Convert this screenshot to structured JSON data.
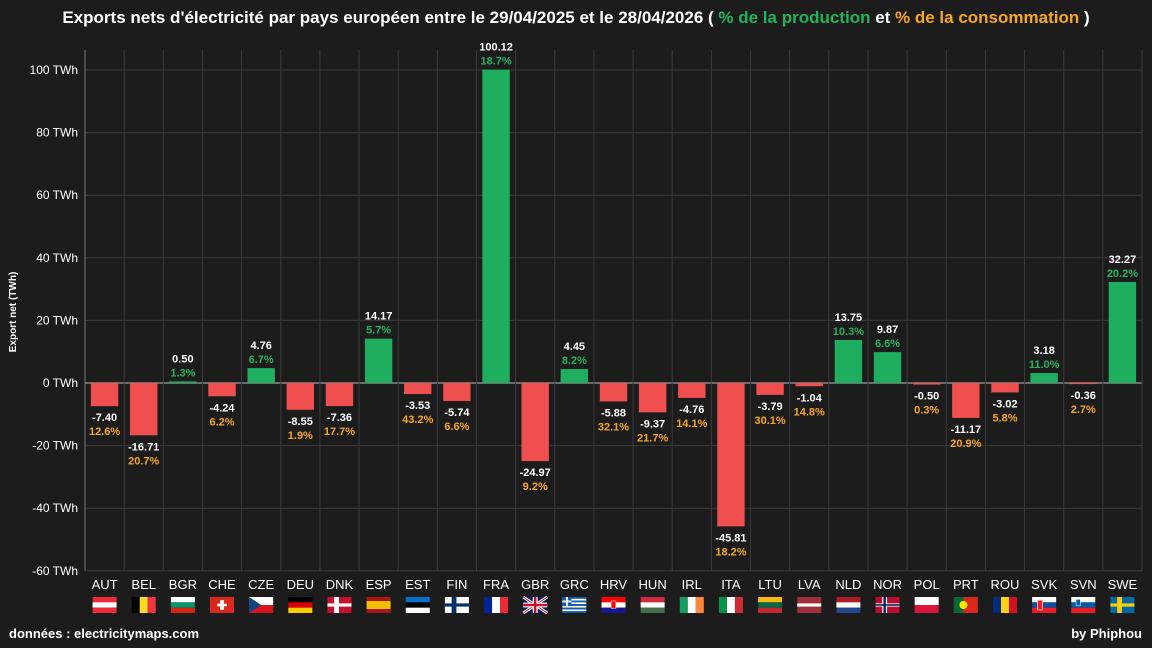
{
  "title": {
    "prefix": "Exports nets d'électricité par pays européen entre le 29/04/2025 et le 28/04/2026 ( ",
    "production": "% de la production",
    "connector": " et ",
    "consumption": "% de la consommation",
    "suffix": " )"
  },
  "footer": {
    "source": "données : electricitymaps.com",
    "author": "by Phiphou"
  },
  "colors": {
    "positive": "#1fae5f",
    "negative": "#ef4f4f",
    "production_text": "#20b35a",
    "consumption_text": "#f5a623",
    "background": "#1c1c1c",
    "grid": "#3a3a3a"
  },
  "chart_data": {
    "type": "bar",
    "ylabel": "Export net (TWh)",
    "ylim": [
      -60,
      105
    ],
    "yticks": [
      -60,
      -40,
      -20,
      0,
      20,
      40,
      60,
      80,
      100
    ],
    "ytick_labels": [
      "-60 TWh",
      "-40 TWh",
      "-20 TWh",
      "0 TWh",
      "20 TWh",
      "40 TWh",
      "60 TWh",
      "80 TWh",
      "100 TWh"
    ],
    "grid": true,
    "categories": [
      "AUT",
      "BEL",
      "BGR",
      "CHE",
      "CZE",
      "DEU",
      "DNK",
      "ESP",
      "EST",
      "FIN",
      "FRA",
      "GBR",
      "GRC",
      "HRV",
      "HUN",
      "IRL",
      "ITA",
      "LTU",
      "LVA",
      "NLD",
      "NOR",
      "POL",
      "PRT",
      "ROU",
      "SVK",
      "SVN",
      "SWE"
    ],
    "values": [
      -7.4,
      -16.71,
      0.5,
      -4.24,
      4.76,
      -8.55,
      -7.36,
      14.17,
      -3.53,
      -5.74,
      100.12,
      -24.97,
      4.45,
      -5.88,
      -9.37,
      -4.76,
      -45.81,
      -3.79,
      -1.04,
      13.75,
      9.87,
      -0.5,
      -11.17,
      -3.02,
      3.18,
      -0.36,
      32.27
    ],
    "value_labels": [
      "-7.40",
      "-16.71",
      "0.50",
      "-4.24",
      "4.76",
      "-8.55",
      "-7.36",
      "14.17",
      "-3.53",
      "-5.74",
      "100.12",
      "-24.97",
      "4.45",
      "-5.88",
      "-9.37",
      "-4.76",
      "-45.81",
      "-3.79",
      "-1.04",
      "13.75",
      "9.87",
      "-0.50",
      "-11.17",
      "-3.02",
      "3.18",
      "-0.36",
      "32.27"
    ],
    "percent_labels": [
      "12.6%",
      "20.7%",
      "1.3%",
      "6.2%",
      "6.7%",
      "1.9%",
      "17.7%",
      "5.7%",
      "43.2%",
      "6.6%",
      "18.7%",
      "9.2%",
      "8.2%",
      "32.1%",
      "21.7%",
      "14.1%",
      "18.2%",
      "30.1%",
      "14.8%",
      "10.3%",
      "6.6%",
      "0.3%",
      "20.9%",
      "5.8%",
      "11.0%",
      "2.7%",
      "20.2%"
    ]
  }
}
